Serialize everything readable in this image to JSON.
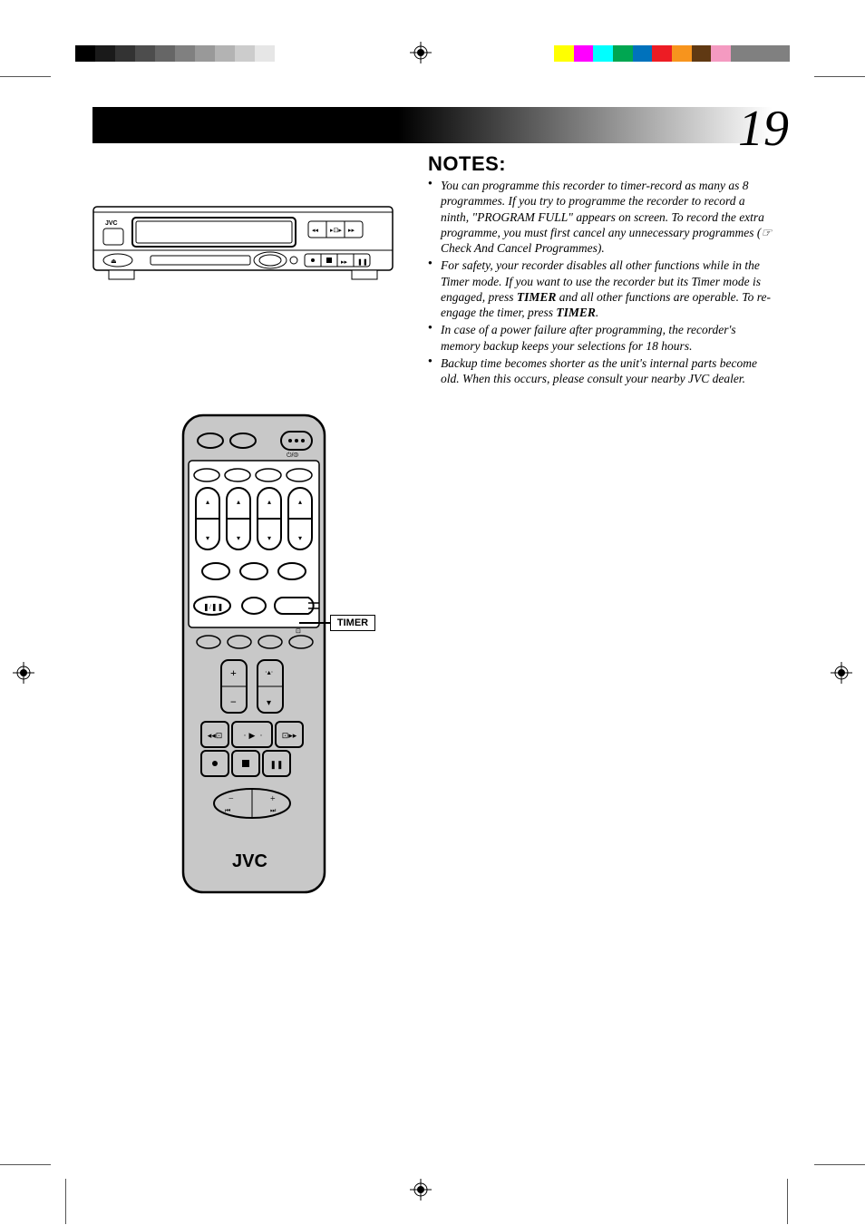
{
  "page_number": "19",
  "notes_heading": "NOTES:",
  "notes": [
    "You can programme this recorder to timer-record as many as 8 programmes. If you try to programme the recorder to record a ninth, \"PROGRAM FULL\" appears on screen. To record the extra programme, you must first cancel any unnecessary programmes (☞ Check And Cancel Programmes).",
    "For safety, your recorder disables all other functions while in the Timer mode. If you want to use the recorder but its Timer mode is engaged, press <b>TIMER</b> and all other functions are operable. To re-engage the timer, press <b>TIMER</b>.",
    "In case of a power failure after programming, the recorder's memory backup keeps your selections for 18 hours.",
    "Backup time becomes shorter as the unit's internal parts become old. When this occurs, please consult your nearby JVC dealer."
  ],
  "callout": {
    "timer": "TIMER"
  },
  "brand": "JVC",
  "print_marks": {
    "gray_steps": [
      "#000000",
      "#1a1a1a",
      "#333333",
      "#4d4d4d",
      "#666666",
      "#808080",
      "#999999",
      "#b3b3b3",
      "#cccccc",
      "#e6e6e6"
    ],
    "cmyk_bar": [
      "#ffff00",
      "#ff00ff",
      "#00ffff",
      "#00a651",
      "#0072bc",
      "#ed1c24",
      "#f7941d",
      "#603913",
      "#f49ac1",
      "#808080",
      "#808080",
      "#808080"
    ]
  },
  "header_bar": {
    "from": "#000000",
    "to": "#ffffff"
  },
  "illustration": {
    "vcr": {
      "stroke": "#000000",
      "fill_body": "#ffffff"
    },
    "remote": {
      "stroke": "#000000",
      "fill_body": "#c8c8c8",
      "fill_panel": "#ffffff"
    }
  }
}
